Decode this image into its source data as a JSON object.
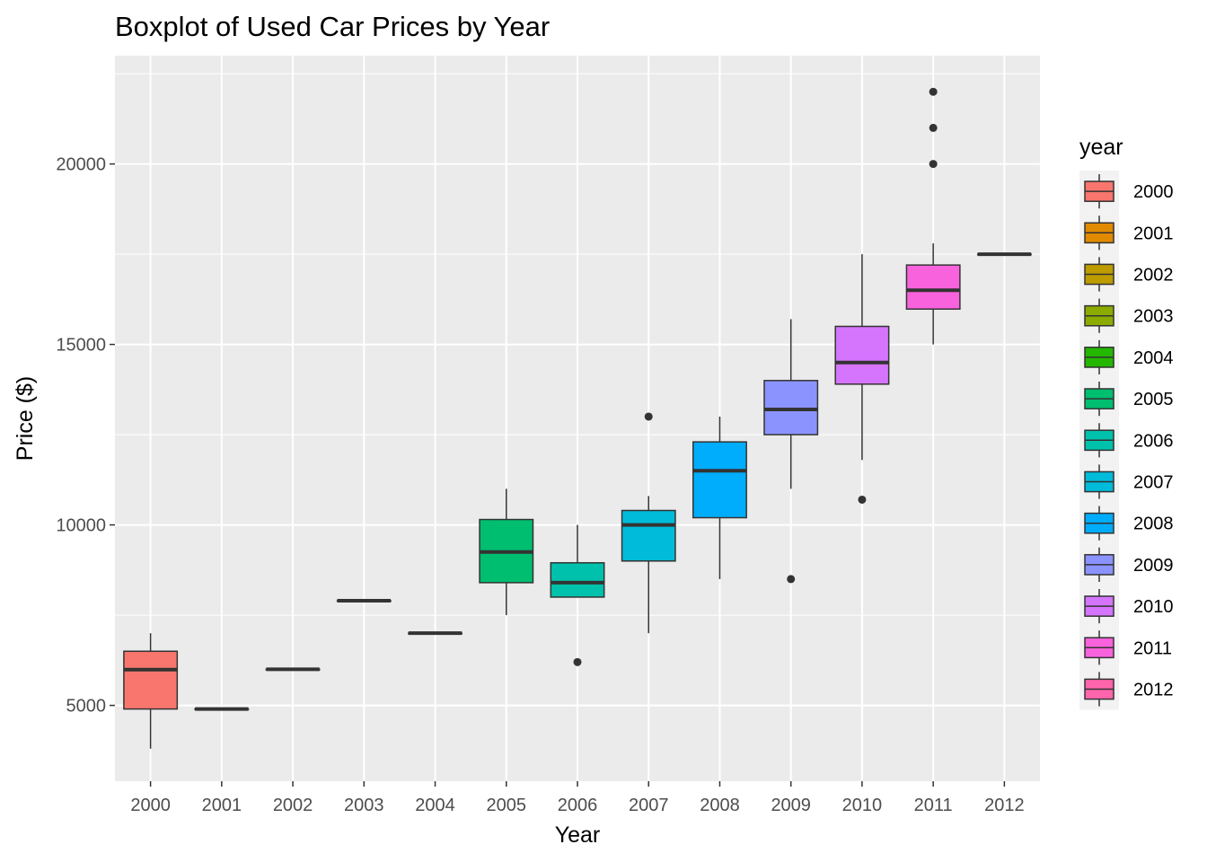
{
  "chart_data": {
    "type": "boxplot",
    "title": "Boxplot of Used Car Prices by Year",
    "xlabel": "Year",
    "ylabel": "Price ($)",
    "ylim": [
      2900,
      23000
    ],
    "y_ticks": [
      5000,
      10000,
      15000,
      20000
    ],
    "y_tick_labels": [
      "5000",
      "10000",
      "15000",
      "20000"
    ],
    "grid": true,
    "legend": {
      "title": "year",
      "position": "right"
    },
    "categories": [
      "2000",
      "2001",
      "2002",
      "2003",
      "2004",
      "2005",
      "2006",
      "2007",
      "2008",
      "2009",
      "2010",
      "2011",
      "2012"
    ],
    "colors": [
      "#F8766D",
      "#E18A00",
      "#BE9C00",
      "#8CAB00",
      "#24B700",
      "#00BE70",
      "#00C1AB",
      "#00BBDA",
      "#00ACFC",
      "#8B93FF",
      "#D575FE",
      "#F962DD",
      "#FF65AC"
    ],
    "boxes": [
      {
        "category": "2000",
        "whisker_low": 3800,
        "q1": 4900,
        "median": 5990,
        "q3": 6500,
        "whisker_high": 7000,
        "outliers": []
      },
      {
        "category": "2001",
        "whisker_low": 4900,
        "q1": 4900,
        "median": 4900,
        "q3": 4900,
        "whisker_high": 4900,
        "outliers": []
      },
      {
        "category": "2002",
        "whisker_low": 6000,
        "q1": 6000,
        "median": 6000,
        "q3": 6000,
        "whisker_high": 6000,
        "outliers": []
      },
      {
        "category": "2003",
        "whisker_low": 7900,
        "q1": 7900,
        "median": 7900,
        "q3": 7900,
        "whisker_high": 7900,
        "outliers": []
      },
      {
        "category": "2004",
        "whisker_low": 7000,
        "q1": 7000,
        "median": 7000,
        "q3": 7000,
        "whisker_high": 7000,
        "outliers": []
      },
      {
        "category": "2005",
        "whisker_low": 7500,
        "q1": 8400,
        "median": 9250,
        "q3": 10150,
        "whisker_high": 11000,
        "outliers": []
      },
      {
        "category": "2006",
        "whisker_low": 8000,
        "q1": 8000,
        "median": 8400,
        "q3": 8950,
        "whisker_high": 10000,
        "outliers": [
          6200
        ]
      },
      {
        "category": "2007",
        "whisker_low": 7000,
        "q1": 9000,
        "median": 10000,
        "q3": 10400,
        "whisker_high": 10800,
        "outliers": [
          13000
        ]
      },
      {
        "category": "2008",
        "whisker_low": 8500,
        "q1": 10200,
        "median": 11500,
        "q3": 12300,
        "whisker_high": 13000,
        "outliers": []
      },
      {
        "category": "2009",
        "whisker_low": 11000,
        "q1": 12500,
        "median": 13200,
        "q3": 14000,
        "whisker_high": 15700,
        "outliers": [
          8500
        ]
      },
      {
        "category": "2010",
        "whisker_low": 11800,
        "q1": 13900,
        "median": 14500,
        "q3": 15500,
        "whisker_high": 17500,
        "outliers": [
          10700
        ]
      },
      {
        "category": "2011",
        "whisker_low": 15000,
        "q1": 15980,
        "median": 16500,
        "q3": 17200,
        "whisker_high": 17800,
        "outliers": [
          20000,
          21000,
          22000
        ]
      },
      {
        "category": "2012",
        "whisker_low": 17500,
        "q1": 17500,
        "median": 17500,
        "q3": 17500,
        "whisker_high": 17500,
        "outliers": []
      }
    ]
  }
}
